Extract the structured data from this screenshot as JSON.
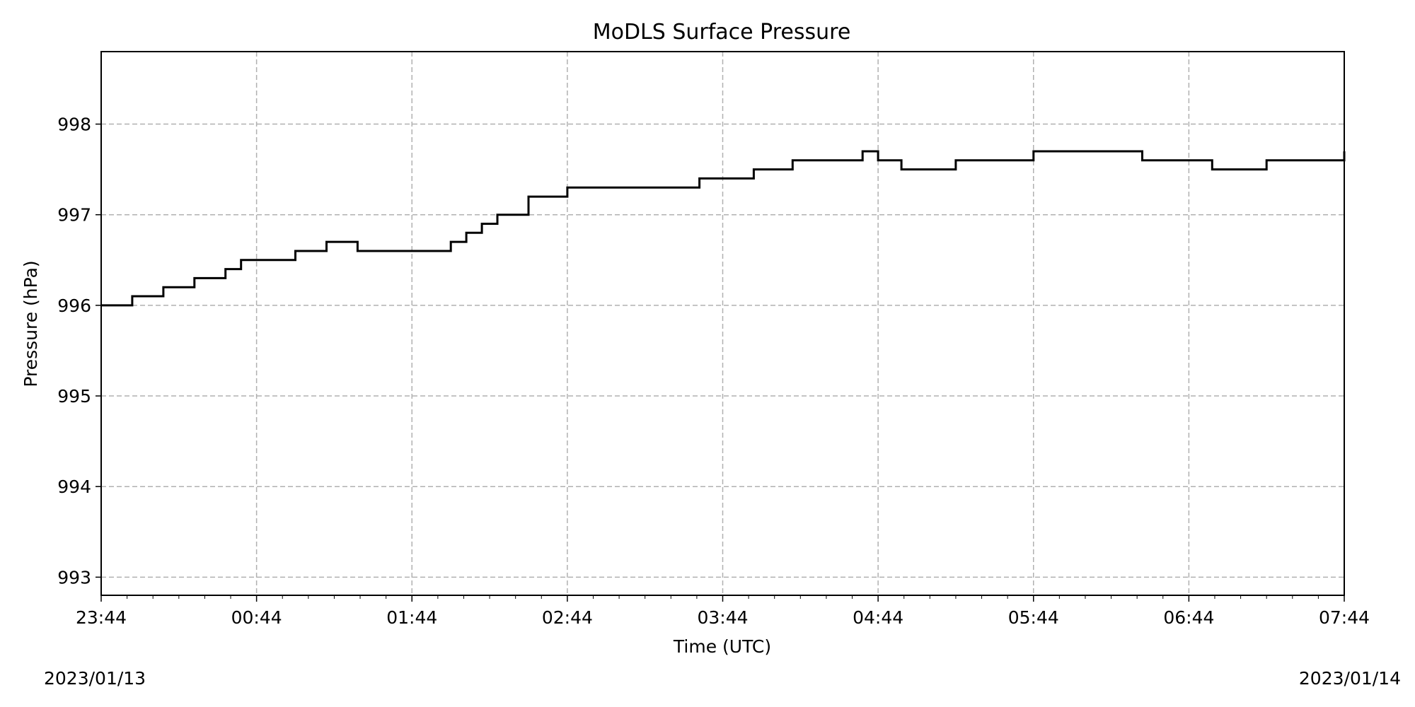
{
  "chart_data": {
    "type": "line",
    "title": "MoDLS Surface Pressure",
    "xlabel": "Time (UTC)",
    "ylabel": "Pressure (hPa)",
    "xlim": [
      "2023-01-13T23:44",
      "2023-01-14T07:44"
    ],
    "ylim": [
      992.8,
      998.8
    ],
    "x_ticks": [
      "23:44",
      "00:44",
      "01:44",
      "02:44",
      "03:44",
      "04:44",
      "05:44",
      "06:44",
      "07:44"
    ],
    "y_ticks": [
      993,
      994,
      995,
      996,
      997,
      998
    ],
    "grid": true,
    "grid_style": "dashed",
    "series_color": "#000000",
    "grid_color": "#b0b0b0",
    "date_left": "2023/01/13",
    "date_right": "2023/01/14",
    "series": [
      {
        "x": [
          "2023-01-13T23:44",
          "2023-01-13T23:56",
          "2023-01-14T00:08",
          "2023-01-14T00:20",
          "2023-01-14T00:32",
          "2023-01-14T00:38",
          "2023-01-14T00:59",
          "2023-01-14T01:11",
          "2023-01-14T01:23",
          "2023-01-14T01:38",
          "2023-01-14T01:59",
          "2023-01-14T02:05",
          "2023-01-14T02:11",
          "2023-01-14T02:17",
          "2023-01-14T02:29",
          "2023-01-14T02:44",
          "2023-01-14T03:08",
          "2023-01-14T03:35",
          "2023-01-14T03:56",
          "2023-01-14T04:11",
          "2023-01-14T04:38",
          "2023-01-14T04:44",
          "2023-01-14T04:53",
          "2023-01-14T05:14",
          "2023-01-14T05:44",
          "2023-01-14T06:26",
          "2023-01-14T06:44",
          "2023-01-14T06:53",
          "2023-01-14T07:14",
          "2023-01-14T07:44"
        ],
        "y": [
          996.0,
          996.1,
          996.2,
          996.3,
          996.4,
          996.5,
          996.6,
          996.7,
          996.6,
          996.6,
          996.7,
          996.8,
          996.9,
          997.0,
          997.2,
          997.3,
          997.3,
          997.4,
          997.5,
          997.6,
          997.7,
          997.6,
          997.5,
          997.6,
          997.7,
          997.6,
          997.6,
          997.5,
          997.6,
          997.7
        ]
      }
    ]
  }
}
